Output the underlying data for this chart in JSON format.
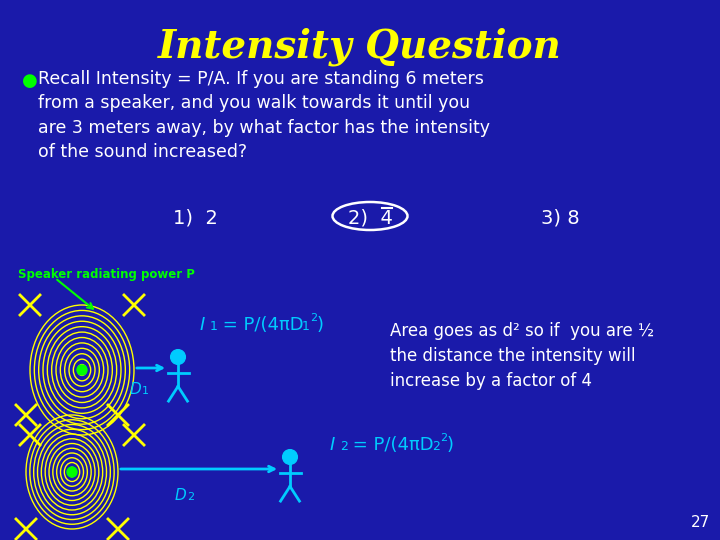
{
  "title": "Intensity Question",
  "title_color": "#FFFF00",
  "title_fontsize": 28,
  "background_color": "#1a1aaa",
  "bullet_text": "Recall Intensity = P/A. If you are standing 6 meters\nfrom a speaker, and you walk towards it until you\nare 3 meters away, by what factor has the intensity\nof the sound increased?",
  "answer1": "1)  2",
  "answer2": "2)  4",
  "answer3": "3) 8",
  "answer_color": "#ffffff",
  "speaker_label": "Speaker radiating power P",
  "explanation_line1": "Area goes as d² so if  you are ½",
  "explanation_line2": "the distance the intensity will",
  "explanation_line3": "increase by a factor of 4",
  "text_color": "#ffffff",
  "green_color": "#00ff00",
  "yellow_color": "#ffff00",
  "cyan_color": "#00ccff",
  "slide_number": "27",
  "bullet_color": "#00ff00",
  "speaker_label_color": "#00ff00",
  "eq_color": "#00ccff"
}
